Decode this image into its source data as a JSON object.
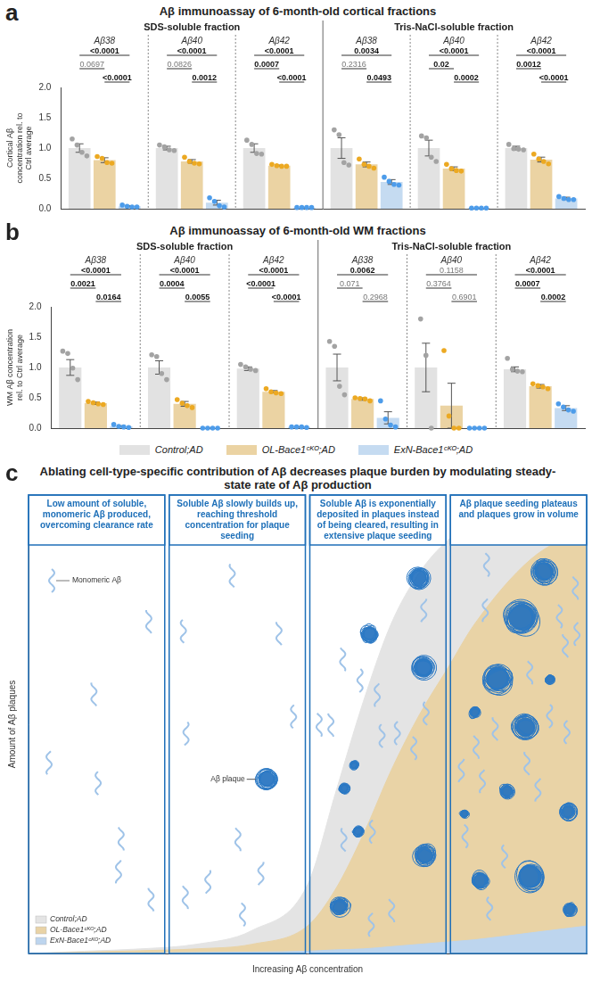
{
  "chart_data": [
    {
      "type": "bar",
      "panel": "a",
      "title": "Aβ immunoassay of 6-month-old cortical fractions",
      "y_label": "Cortical Aβ concentration rel. to Ctrl average",
      "categories": [
        "Aβ38",
        "Aβ40",
        "Aβ42",
        "Aβ38",
        "Aβ40",
        "Aβ42"
      ],
      "category_groups": [
        "SDS-soluble fraction",
        "SDS-soluble fraction",
        "SDS-soluble fraction",
        "Tris-NaCl-soluble fraction",
        "Tris-NaCl-soluble fraction",
        "Tris-NaCl-soluble fraction"
      ],
      "series": [
        {
          "color": "#e2e2e2",
          "values": [
            1.0,
            1.0,
            1.0,
            1.0,
            1.0,
            1.0
          ],
          "errors": [
            0.07,
            0.03,
            0.07,
            0.17,
            0.13,
            0.03
          ],
          "points": [
            [
              1.15,
              1.05,
              0.93,
              0.87
            ],
            [
              1.05,
              1.02,
              0.97,
              0.96
            ],
            [
              1.13,
              1.06,
              0.91,
              0.9
            ],
            [
              1.3,
              1.22,
              0.76,
              0.72
            ],
            [
              1.2,
              1.17,
              0.85,
              0.78
            ],
            [
              1.06,
              0.99,
              0.98,
              0.97
            ]
          ]
        },
        {
          "color": "#ebd3a3",
          "values": [
            0.8,
            0.78,
            0.71,
            0.73,
            0.66,
            0.81
          ],
          "errors": [
            0.04,
            0.03,
            0.01,
            0.04,
            0.03,
            0.04
          ],
          "points": [
            [
              0.86,
              0.83,
              0.76,
              0.75
            ],
            [
              0.85,
              0.78,
              0.75,
              0.74
            ],
            [
              0.73,
              0.71,
              0.7,
              0.7
            ],
            [
              0.82,
              0.73,
              0.7,
              0.67
            ],
            [
              0.73,
              0.66,
              0.63,
              0.62
            ],
            [
              0.9,
              0.82,
              0.78,
              0.74
            ]
          ]
        },
        {
          "color": "#c5dbf1",
          "values": [
            0.04,
            0.1,
            0.02,
            0.44,
            0.01,
            0.17
          ],
          "errors": [
            0.01,
            0.04,
            0.003,
            0.04,
            0.003,
            0.02
          ],
          "points": [
            [
              0.06,
              0.04,
              0.03,
              0.03
            ],
            [
              0.18,
              0.12,
              0.05,
              0.03
            ],
            [
              0.02,
              0.02,
              0.02,
              0.02
            ],
            [
              0.52,
              0.45,
              0.4,
              0.39
            ],
            [
              0.01,
              0.01,
              0.01,
              0.01
            ],
            [
              0.2,
              0.17,
              0.15,
              0.15
            ]
          ]
        }
      ],
      "p_value_pairs": [
        [
          0,
          2
        ],
        [
          0,
          1
        ],
        [
          1,
          2
        ]
      ],
      "p_values": [
        [
          "<0.0001",
          "0.0697",
          "<0.0001"
        ],
        [
          "<0.0001",
          "0.0826",
          "0.0012"
        ],
        [
          "<0.0001",
          "0.0007",
          "<0.0001"
        ],
        [
          "0.0034",
          "0.2316",
          "0.0493"
        ],
        [
          "<0.0001",
          "0.02",
          "0.0002"
        ],
        [
          "<0.0001",
          "0.0012",
          "<0.0001"
        ]
      ],
      "ylim": [
        0,
        2
      ],
      "yticks": [
        {
          "value": 0,
          "label": "0.0"
        },
        0.5,
        {
          "value": 1,
          "label": "1.0"
        },
        1.5,
        {
          "value": 2,
          "label": "2.0"
        }
      ],
      "grid": false
    },
    {
      "type": "bar",
      "panel": "b",
      "title": "Aβ immunoassay of 6-month-old WM fractions",
      "y_label": "WM Aβ concentration rel. to Ctrl average",
      "categories": [
        "Aβ38",
        "Aβ40",
        "Aβ42",
        "Aβ38",
        "Aβ40",
        "Aβ42"
      ],
      "category_groups": [
        "SDS-soluble fraction",
        "SDS-soluble fraction",
        "SDS-soluble fraction",
        "Tris-NaCl-soluble fraction",
        "Tris-NaCl-soluble fraction",
        "Tris-NaCl-soluble fraction"
      ],
      "series": [
        {
          "name": "Control;AD",
          "color": "#e2e2e2",
          "values": [
            1.0,
            1.0,
            0.98,
            1.0,
            1.0,
            0.97
          ],
          "errors": [
            0.13,
            0.11,
            0.03,
            0.22,
            0.4,
            0.04
          ],
          "points": [
            [
              1.27,
              1.23,
              0.99,
              0.8
            ],
            [
              1.21,
              1.18,
              0.9,
              0.8
            ],
            [
              1.05,
              1.01,
              0.97,
              0.95
            ],
            [
              1.43,
              1.35,
              0.69,
              0.55
            ],
            [
              1.8,
              1.2,
              0.0
            ],
            [
              1.15,
              0.97,
              0.94,
              0.93
            ]
          ]
        },
        {
          "name": "OL-Bace1ᶜᴷᴼ;AD",
          "color": "#ebd3a3",
          "values": [
            0.41,
            0.4,
            0.6,
            0.48,
            0.37,
            0.69
          ],
          "errors": [
            0.02,
            0.04,
            0.02,
            0.02,
            0.37,
            0.03
          ],
          "points": [
            [
              0.44,
              0.42,
              0.4,
              0.39
            ],
            [
              0.47,
              0.41,
              0.37,
              0.34
            ],
            [
              0.65,
              0.6,
              0.58,
              0.57
            ],
            [
              0.5,
              0.49,
              0.48,
              0.45
            ],
            [
              1.28,
              0.2,
              0.0,
              0.0
            ],
            [
              0.73,
              0.7,
              0.68,
              0.65
            ]
          ]
        },
        {
          "name": "ExN-Bace1ᶜᴷᴼ;AD",
          "color": "#c5dbf1",
          "values": [
            0.03,
            0.0,
            0.02,
            0.17,
            0.0,
            0.33
          ],
          "errors": [
            0.01,
            0.0,
            0.005,
            0.1,
            0.0,
            0.04
          ],
          "points": [
            [
              0.06,
              0.03,
              0.02,
              0.01
            ],
            [
              0.0,
              0.0,
              0.0,
              0.0
            ],
            [
              0.02,
              0.02,
              0.02,
              0.01
            ],
            [
              0.45,
              0.15,
              0.05,
              0.02
            ],
            [
              0.0,
              0.0,
              0.0,
              0.0
            ],
            [
              0.4,
              0.35,
              0.3,
              0.28
            ]
          ]
        }
      ],
      "p_value_pairs": [
        [
          0,
          2
        ],
        [
          0,
          1
        ],
        [
          1,
          2
        ]
      ],
      "p_values": [
        [
          "<0.0001",
          "0.0021",
          "0.0164"
        ],
        [
          "<0.0001",
          "0.0004",
          "0.0055"
        ],
        [
          "<0.0001",
          "<0.0001",
          "<0.0001"
        ],
        [
          "0.0062",
          "0.071",
          "0.2968"
        ],
        [
          "0.1158",
          "0.3764",
          "0.6901"
        ],
        [
          "<0.0001",
          "0.0007",
          "0.0002"
        ]
      ],
      "ylim": [
        0,
        2
      ],
      "yticks": [
        {
          "value": 0,
          "label": "0.0"
        },
        0.5,
        {
          "value": 1,
          "label": "1.0"
        },
        1.5,
        {
          "value": 2,
          "label": "2.0"
        }
      ],
      "grid": false,
      "legend": "bottom"
    },
    {
      "type": "area",
      "panel": "c",
      "title": "Ablating cell-type-specific contribution of Aβ decreases plaque burden by modulating steady-state rate of Aβ production",
      "x_label": "Increasing Aβ concentration",
      "y_label": "Amount of Aβ plaques",
      "x": [
        0,
        10,
        20,
        30,
        40,
        50,
        55,
        60,
        65,
        70,
        75,
        80,
        90,
        100
      ],
      "series": [
        {
          "name": "Control;AD",
          "color": "#e4e4e4",
          "values": [
            0,
            0.5,
            1,
            2,
            5,
            15,
            35,
            55,
            72,
            83,
            90,
            94,
            97,
            98
          ]
        },
        {
          "name": "OL-Bace1ᶜᴷᴼ;AD",
          "color": "#e9d3a6",
          "values": [
            0,
            0.3,
            0.6,
            1,
            2,
            6,
            14,
            26,
            40,
            52,
            62,
            72,
            86,
            93
          ]
        },
        {
          "name": "ExN-Bace1ᶜᴷᴼ;AD",
          "color": "#bdd5ee",
          "values": [
            0,
            0,
            0.1,
            0.2,
            0.3,
            0.5,
            0.8,
            1,
            1.5,
            2,
            2.5,
            3,
            4.5,
            6
          ]
        }
      ],
      "xlim": [
        0,
        100
      ],
      "ylim": [
        0,
        100
      ],
      "tick_labels": false,
      "grid": false,
      "legend": "bottom-left",
      "stages": [
        "Low amount of soluble, monomeric Aβ produced, overcoming clearance rate",
        "Soluble Aβ slowly builds up, reaching threshold concentration for plaque seeding",
        "Soluble Aβ is exponentially deposited in plaques instead of being cleared, resulting in extensive plaque seeding",
        "Aβ plaque seeding plateaus and plaques grow in volume"
      ],
      "annotations": [
        "Monomeric Aβ",
        "Aβ plaque"
      ]
    }
  ]
}
